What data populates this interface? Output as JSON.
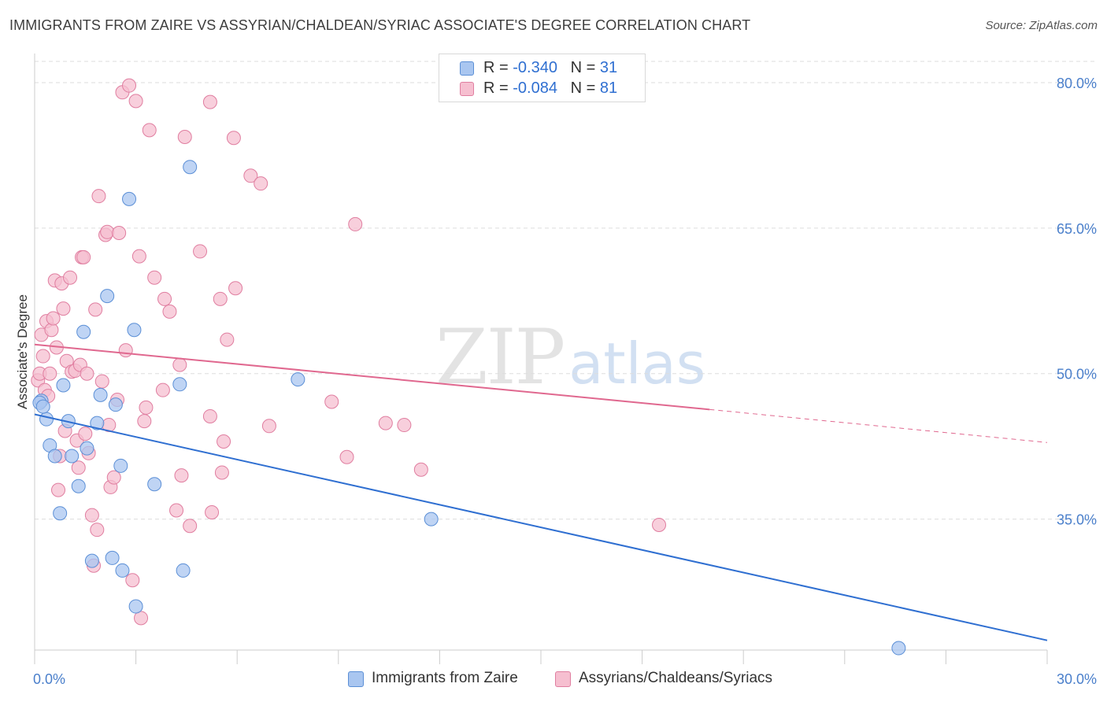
{
  "title": "IMMIGRANTS FROM ZAIRE VS ASSYRIAN/CHALDEAN/SYRIAC ASSOCIATE'S DEGREE CORRELATION CHART",
  "source": "Source: ZipAtlas.com",
  "watermark": {
    "zip": "ZIP",
    "atlas": "atlas"
  },
  "legend": {
    "r_label": "R =",
    "n_label": "N =",
    "rows": [
      {
        "r": "-0.340",
        "n": "31",
        "color": "#a9c6f0",
        "border": "#6f9fdf"
      },
      {
        "r": "-0.084",
        "n": "81",
        "color": "#f6bfd0",
        "border": "#e58aa8"
      }
    ]
  },
  "bottom_legend": [
    "Immigrants from Zaire",
    "Assyrians/Chaldeans/Syriacs"
  ],
  "colors": {
    "blue_fill": "#a9c6f0",
    "blue_stroke": "#5b8fd6",
    "blue_line": "#2f6fd1",
    "pink_fill": "#f6bfd0",
    "pink_stroke": "#e07ea0",
    "pink_line": "#e0688f",
    "grid": "#dddddd",
    "tick_text": "#4a7fcb"
  },
  "chart_data": {
    "type": "scatter",
    "title": "IMMIGRANTS FROM ZAIRE VS ASSYRIAN/CHALDEAN/SYRIAC ASSOCIATE'S DEGREE CORRELATION CHART",
    "xlabel": "",
    "ylabel": "Associate's Degree",
    "xlim": [
      0,
      30
    ],
    "ylim": [
      21.5,
      83
    ],
    "x_tick_labels": [
      "0.0%",
      "30.0%"
    ],
    "y_ticks": [
      35,
      50,
      65,
      80
    ],
    "y_tick_labels": [
      "35.0%",
      "50.0%",
      "65.0%",
      "80.0%"
    ],
    "grid": true,
    "legend_position": "top-center",
    "series": [
      {
        "name": "Immigrants from Zaire",
        "color": "#a9c6f0",
        "points": [
          [
            0.2,
            47.2
          ],
          [
            0.35,
            45.3
          ],
          [
            0.45,
            42.6
          ],
          [
            0.6,
            41.5
          ],
          [
            0.75,
            35.6
          ],
          [
            0.85,
            48.8
          ],
          [
            1.0,
            45.1
          ],
          [
            1.1,
            41.5
          ],
          [
            1.3,
            38.4
          ],
          [
            1.45,
            54.3
          ],
          [
            1.55,
            42.3
          ],
          [
            1.7,
            30.7
          ],
          [
            1.85,
            44.9
          ],
          [
            1.95,
            47.8
          ],
          [
            2.15,
            58.0
          ],
          [
            2.3,
            31.0
          ],
          [
            2.4,
            46.8
          ],
          [
            2.55,
            40.5
          ],
          [
            2.6,
            29.7
          ],
          [
            2.8,
            68.0
          ],
          [
            2.95,
            54.5
          ],
          [
            3.0,
            26.0
          ],
          [
            3.55,
            38.6
          ],
          [
            4.3,
            48.9
          ],
          [
            4.4,
            29.7
          ],
          [
            4.6,
            71.3
          ],
          [
            7.8,
            49.4
          ],
          [
            11.75,
            35.0
          ],
          [
            25.6,
            21.7
          ],
          [
            0.15,
            47.0
          ],
          [
            0.25,
            46.6
          ]
        ],
        "trend": {
          "x": [
            0,
            30
          ],
          "y": [
            45.8,
            22.5
          ]
        }
      },
      {
        "name": "Assyrians/Chaldeans/Syriacs",
        "color": "#f6bfd0",
        "points": [
          [
            0.1,
            49.3
          ],
          [
            0.15,
            50.0
          ],
          [
            0.2,
            54.0
          ],
          [
            0.25,
            51.8
          ],
          [
            0.3,
            48.3
          ],
          [
            0.35,
            55.4
          ],
          [
            0.4,
            47.7
          ],
          [
            0.45,
            50.0
          ],
          [
            0.5,
            54.5
          ],
          [
            0.55,
            55.7
          ],
          [
            0.6,
            59.6
          ],
          [
            0.65,
            52.7
          ],
          [
            0.7,
            38.0
          ],
          [
            0.75,
            41.5
          ],
          [
            0.8,
            59.3
          ],
          [
            0.85,
            56.7
          ],
          [
            0.9,
            44.1
          ],
          [
            0.95,
            51.3
          ],
          [
            1.05,
            59.9
          ],
          [
            1.1,
            50.2
          ],
          [
            1.2,
            50.3
          ],
          [
            1.25,
            43.1
          ],
          [
            1.3,
            40.3
          ],
          [
            1.35,
            50.9
          ],
          [
            1.4,
            62.0
          ],
          [
            1.45,
            62.0
          ],
          [
            1.5,
            43.8
          ],
          [
            1.55,
            50.0
          ],
          [
            1.6,
            41.8
          ],
          [
            1.7,
            35.4
          ],
          [
            1.75,
            30.2
          ],
          [
            1.8,
            56.6
          ],
          [
            1.85,
            33.9
          ],
          [
            1.9,
            68.3
          ],
          [
            2.0,
            49.2
          ],
          [
            2.1,
            64.3
          ],
          [
            2.15,
            64.6
          ],
          [
            2.2,
            44.7
          ],
          [
            2.25,
            38.3
          ],
          [
            2.35,
            39.3
          ],
          [
            2.45,
            47.3
          ],
          [
            2.5,
            64.5
          ],
          [
            2.6,
            79.0
          ],
          [
            2.7,
            52.4
          ],
          [
            2.8,
            79.7
          ],
          [
            2.9,
            28.7
          ],
          [
            3.0,
            78.1
          ],
          [
            3.1,
            62.1
          ],
          [
            3.15,
            24.8
          ],
          [
            3.25,
            45.1
          ],
          [
            3.3,
            46.5
          ],
          [
            3.4,
            75.1
          ],
          [
            3.55,
            59.9
          ],
          [
            3.8,
            48.3
          ],
          [
            3.85,
            57.7
          ],
          [
            4.0,
            56.4
          ],
          [
            4.2,
            35.9
          ],
          [
            4.3,
            50.9
          ],
          [
            4.35,
            39.5
          ],
          [
            4.45,
            74.4
          ],
          [
            4.6,
            34.3
          ],
          [
            4.9,
            62.6
          ],
          [
            5.2,
            45.6
          ],
          [
            5.25,
            35.7
          ],
          [
            5.5,
            57.7
          ],
          [
            5.55,
            39.8
          ],
          [
            5.6,
            43.0
          ],
          [
            5.7,
            53.5
          ],
          [
            5.9,
            74.3
          ],
          [
            5.95,
            58.8
          ],
          [
            6.4,
            70.4
          ],
          [
            6.7,
            69.6
          ],
          [
            6.95,
            44.6
          ],
          [
            8.8,
            47.1
          ],
          [
            9.25,
            41.4
          ],
          [
            9.5,
            65.4
          ],
          [
            10.4,
            44.9
          ],
          [
            10.95,
            44.7
          ],
          [
            11.45,
            40.1
          ],
          [
            18.5,
            34.4
          ],
          [
            5.2,
            78.0
          ]
        ],
        "trend": {
          "x": [
            0,
            20.0
          ],
          "y": [
            53.0,
            46.3
          ]
        },
        "trend_dashed": {
          "x": [
            20.0,
            30
          ],
          "y": [
            46.3,
            42.9
          ]
        }
      }
    ]
  }
}
